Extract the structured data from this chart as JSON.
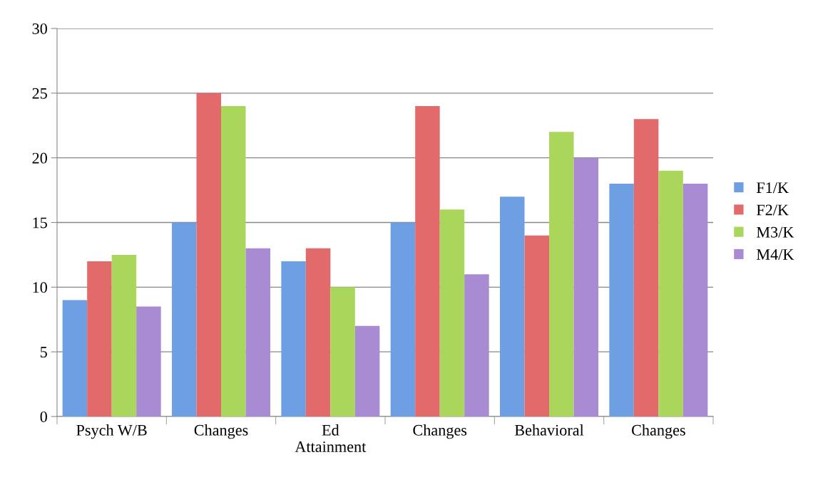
{
  "chart_data": {
    "type": "bar",
    "categories": [
      "Psych W/B",
      "Changes",
      "Ed\nAttainment",
      "Changes",
      "Behavioral",
      "Changes"
    ],
    "series": [
      {
        "name": "F1/K",
        "color": "#6f9fe3",
        "values": [
          9,
          15,
          12,
          15,
          17,
          18
        ]
      },
      {
        "name": "F2/K",
        "color": "#e36a6a",
        "values": [
          12,
          25,
          13,
          24,
          14,
          23
        ]
      },
      {
        "name": "M3/K",
        "color": "#abd65c",
        "values": [
          12.5,
          24,
          10,
          16,
          22,
          19
        ]
      },
      {
        "name": "M4/K",
        "color": "#a98bd3",
        "values": [
          8.5,
          13,
          7,
          11,
          20,
          18
        ]
      }
    ],
    "ylim": [
      0,
      30
    ],
    "yticks": [
      0,
      5,
      10,
      15,
      20,
      25,
      30
    ],
    "grid": "y",
    "legend": "right"
  }
}
